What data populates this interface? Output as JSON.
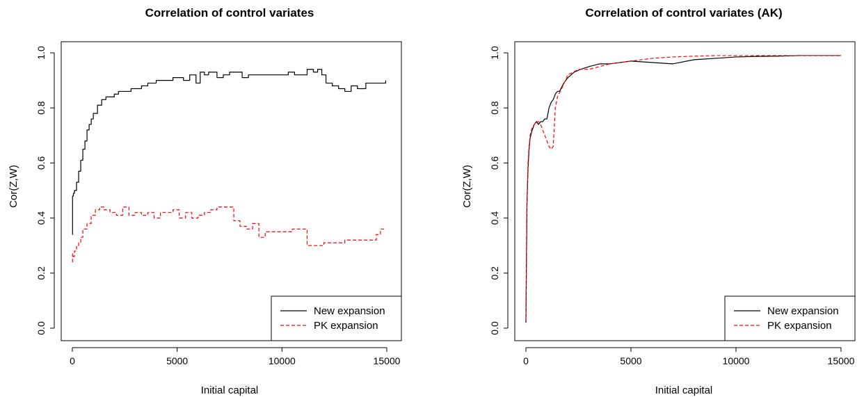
{
  "chart_data": [
    {
      "type": "line",
      "title": "Correlation of control variates",
      "xlabel": "Initial capital",
      "ylabel": "Cor(Z,W)",
      "xlim": [
        0,
        15000
      ],
      "ylim": [
        0,
        1
      ],
      "xticks": [
        "0",
        "5000",
        "10000",
        "15000"
      ],
      "yticks": [
        "0.0",
        "0.2",
        "0.4",
        "0.6",
        "0.8",
        "1.0"
      ],
      "grid": false,
      "legend_position": "bottom-right",
      "series": [
        {
          "name": "New expansion",
          "color": "#000000",
          "dash": "solid",
          "x": [
            0,
            10,
            50,
            100,
            200,
            300,
            400,
            500,
            600,
            700,
            800,
            900,
            1000,
            1200,
            1400,
            1600,
            1800,
            2000,
            2200,
            2500,
            2800,
            3000,
            3300,
            3600,
            4000,
            4400,
            4800,
            5000,
            5300,
            5600,
            5900,
            6100,
            6300,
            6500,
            6700,
            6900,
            7200,
            7500,
            7800,
            8100,
            8400,
            8700,
            9000,
            9300,
            9700,
            10000,
            10300,
            10600,
            11000,
            11200,
            11500,
            11700,
            11900,
            12100,
            12400,
            12700,
            13000,
            13300,
            13600,
            14000,
            14400,
            14800,
            14950
          ],
          "y": [
            0.34,
            0.48,
            0.49,
            0.5,
            0.53,
            0.57,
            0.61,
            0.65,
            0.68,
            0.72,
            0.74,
            0.76,
            0.78,
            0.81,
            0.83,
            0.84,
            0.84,
            0.85,
            0.86,
            0.86,
            0.87,
            0.87,
            0.88,
            0.89,
            0.9,
            0.9,
            0.91,
            0.91,
            0.9,
            0.92,
            0.89,
            0.93,
            0.92,
            0.93,
            0.93,
            0.91,
            0.92,
            0.93,
            0.93,
            0.91,
            0.92,
            0.92,
            0.92,
            0.92,
            0.92,
            0.92,
            0.93,
            0.92,
            0.92,
            0.94,
            0.93,
            0.94,
            0.92,
            0.89,
            0.88,
            0.87,
            0.86,
            0.88,
            0.87,
            0.89,
            0.89,
            0.89,
            0.9
          ]
        },
        {
          "name": "PK expansion",
          "color": "#ff0000",
          "dash": "dashed",
          "x": [
            0,
            10,
            50,
            100,
            200,
            300,
            400,
            500,
            700,
            900,
            1100,
            1300,
            1500,
            1800,
            2100,
            2400,
            2700,
            3000,
            3300,
            3600,
            3900,
            4200,
            4500,
            4800,
            5100,
            5400,
            5700,
            6000,
            6300,
            6600,
            6900,
            7200,
            7500,
            7700,
            8000,
            8300,
            8600,
            8900,
            9200,
            9500,
            10000,
            10500,
            11000,
            11200,
            12000,
            13000,
            14000,
            14500,
            14700,
            14950
          ],
          "y": [
            0.24,
            0.27,
            0.26,
            0.28,
            0.3,
            0.31,
            0.33,
            0.36,
            0.38,
            0.41,
            0.43,
            0.44,
            0.43,
            0.42,
            0.41,
            0.44,
            0.41,
            0.42,
            0.41,
            0.42,
            0.4,
            0.42,
            0.42,
            0.43,
            0.4,
            0.42,
            0.4,
            0.41,
            0.42,
            0.43,
            0.44,
            0.44,
            0.44,
            0.39,
            0.37,
            0.36,
            0.38,
            0.33,
            0.35,
            0.35,
            0.35,
            0.36,
            0.36,
            0.3,
            0.31,
            0.32,
            0.32,
            0.34,
            0.36,
            0.36
          ]
        }
      ]
    },
    {
      "type": "line",
      "title": "Correlation of control variates (AK)",
      "xlabel": "Initial capital",
      "ylabel": "Cor(Z,W)",
      "xlim": [
        0,
        15000
      ],
      "ylim": [
        0,
        1
      ],
      "xticks": [
        "0",
        "5000",
        "10000",
        "15000"
      ],
      "yticks": [
        "0.0",
        "0.2",
        "0.4",
        "0.6",
        "0.8",
        "1.0"
      ],
      "grid": false,
      "legend_position": "bottom-right",
      "series": [
        {
          "name": "New expansion",
          "color": "#000000",
          "dash": "solid",
          "x": [
            0,
            20,
            50,
            100,
            150,
            200,
            300,
            400,
            500,
            600,
            700,
            800,
            900,
            1000,
            1100,
            1200,
            1300,
            1400,
            1500,
            1600,
            1800,
            2000,
            2300,
            2600,
            3000,
            3500,
            4000,
            5000,
            6000,
            7000,
            8000,
            9000,
            10000,
            11000,
            12000,
            13000,
            14000,
            15000
          ],
          "y": [
            0.02,
            0.2,
            0.45,
            0.58,
            0.65,
            0.69,
            0.72,
            0.74,
            0.75,
            0.74,
            0.75,
            0.75,
            0.76,
            0.76,
            0.8,
            0.82,
            0.83,
            0.85,
            0.86,
            0.86,
            0.89,
            0.91,
            0.93,
            0.94,
            0.95,
            0.96,
            0.96,
            0.97,
            0.965,
            0.96,
            0.975,
            0.98,
            0.985,
            0.987,
            0.988,
            0.99,
            0.99,
            0.99
          ]
        },
        {
          "name": "PK expansion",
          "color": "#ff0000",
          "dash": "dashed",
          "x": [
            0,
            20,
            50,
            100,
            150,
            200,
            300,
            400,
            500,
            600,
            700,
            800,
            900,
            1000,
            1100,
            1200,
            1300,
            1400,
            1500,
            1700,
            2000,
            2500,
            3000,
            3500,
            4000,
            5000,
            6000,
            7000,
            8000,
            9000,
            10000,
            12000,
            14000,
            15000
          ],
          "y": [
            0.03,
            0.2,
            0.45,
            0.6,
            0.66,
            0.7,
            0.73,
            0.74,
            0.75,
            0.75,
            0.74,
            0.72,
            0.7,
            0.68,
            0.66,
            0.65,
            0.66,
            0.8,
            0.84,
            0.87,
            0.92,
            0.94,
            0.94,
            0.95,
            0.96,
            0.97,
            0.98,
            0.985,
            0.988,
            0.99,
            0.99,
            0.99,
            0.99,
            0.99
          ]
        }
      ]
    }
  ]
}
